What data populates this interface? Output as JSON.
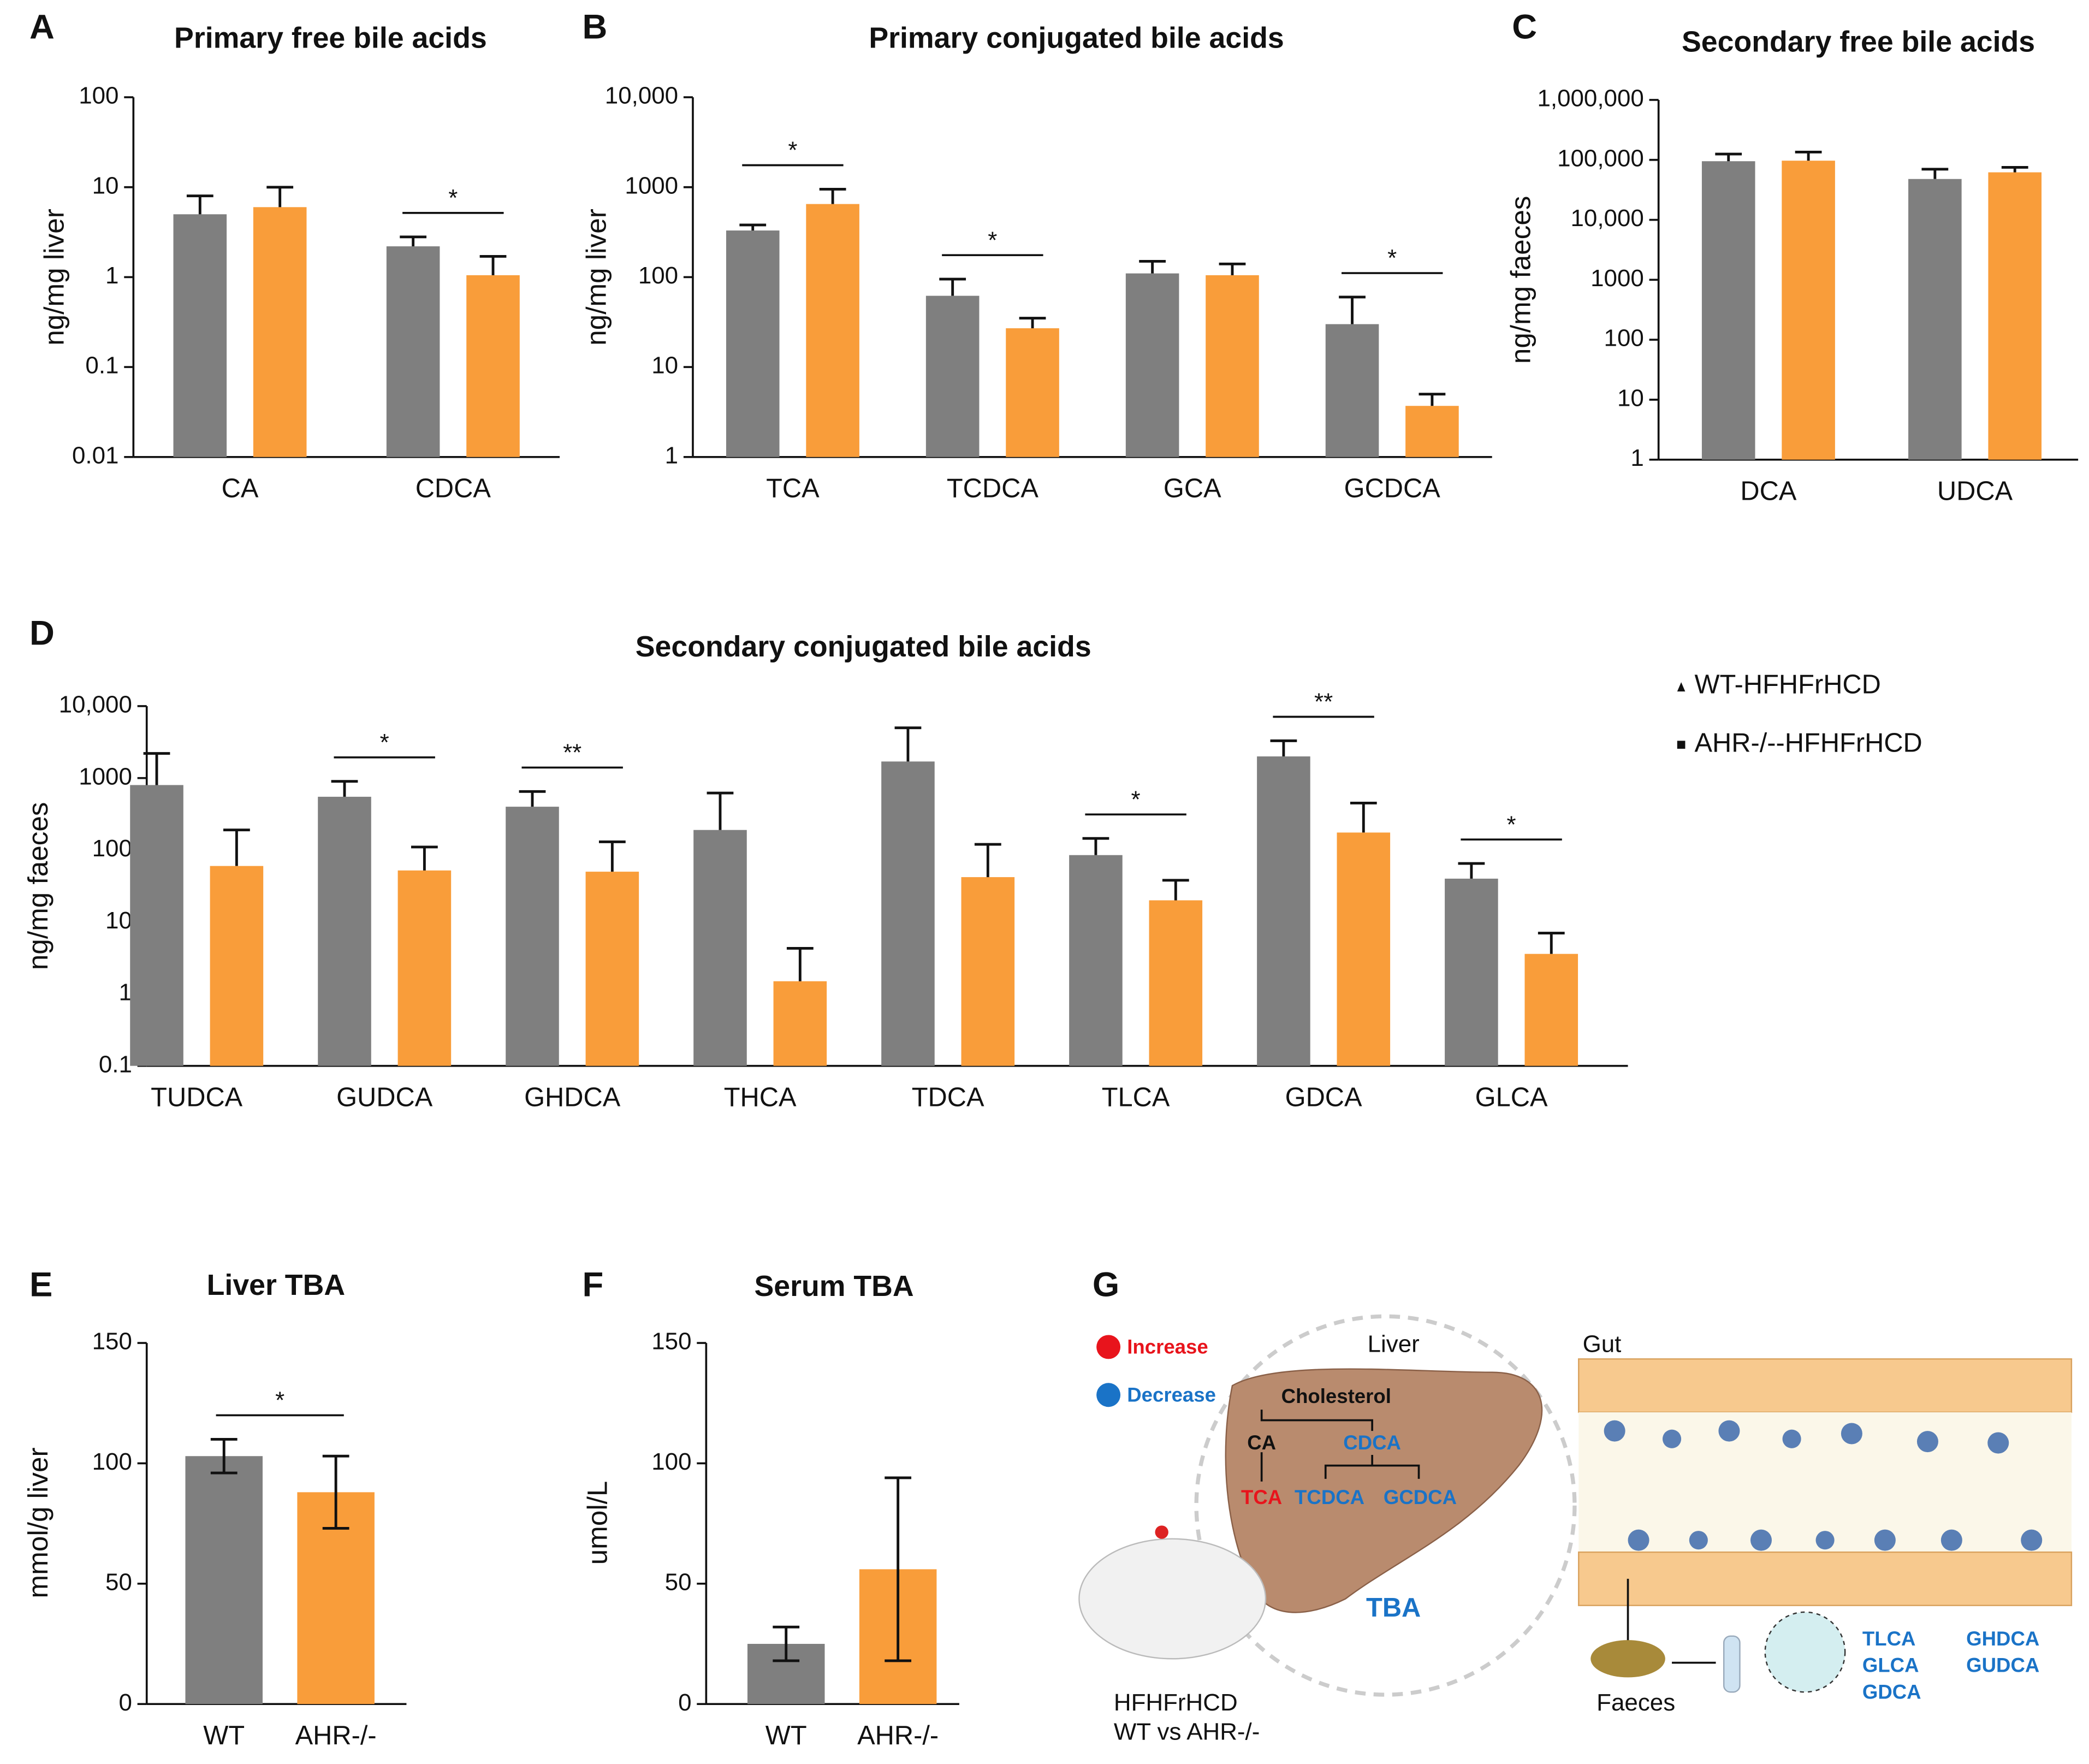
{
  "chart_data": [
    {
      "type": "bar",
      "panel": "A",
      "title": "Primary free bile acids",
      "y_label": "ng/mg liver",
      "log_scale": true,
      "categories": [
        "CA",
        "CDCA"
      ],
      "series": [
        {
          "color": "#7f7f7f",
          "values": [
            5,
            2.2
          ],
          "errors": [
            3,
            0.6
          ]
        },
        {
          "color": "#f99d3a",
          "values": [
            6,
            1.05
          ],
          "errors": [
            4,
            0.65
          ]
        }
      ],
      "significance": [
        null,
        "*"
      ],
      "ylim": [
        0.01,
        100
      ],
      "yticks": [
        0.01,
        0.1,
        1,
        10,
        100
      ]
    },
    {
      "type": "bar",
      "panel": "B",
      "title": "Primary conjugated bile acids",
      "y_label": "ng/mg liver",
      "log_scale": true,
      "categories": [
        "TCA",
        "TCDCA",
        "GCA",
        "GCDCA"
      ],
      "series": [
        {
          "color": "#7f7f7f",
          "values": [
            330,
            62,
            110,
            30
          ],
          "errors": [
            50,
            33,
            40,
            30
          ]
        },
        {
          "color": "#f99d3a",
          "values": [
            650,
            27,
            105,
            3.7
          ],
          "errors": [
            300,
            8,
            35,
            1.3
          ]
        }
      ],
      "significance": [
        "*",
        "*",
        null,
        "*"
      ],
      "ylim": [
        1,
        10000
      ],
      "yticks": [
        1,
        10,
        100,
        1000,
        {
          "value": 10000,
          "label": "10,000"
        }
      ]
    },
    {
      "type": "bar",
      "panel": "C",
      "title": "Secondary free bile acids",
      "y_label": "ng/mg faeces",
      "log_scale": true,
      "categories": [
        "DCA",
        "UDCA"
      ],
      "series": [
        {
          "color": "#7f7f7f",
          "values": [
            95000,
            48000
          ],
          "errors": [
            30000,
            22000
          ]
        },
        {
          "color": "#f99d3a",
          "values": [
            97000,
            62000
          ],
          "errors": [
            38000,
            13000
          ]
        }
      ],
      "significance": [
        null,
        null
      ],
      "ylim": [
        1,
        1000000
      ],
      "yticks": [
        1,
        10,
        100,
        1000,
        {
          "value": 10000,
          "label": "10,000"
        },
        {
          "value": 100000,
          "label": "100,000"
        },
        {
          "value": 1000000,
          "label": "1,000,000"
        }
      ]
    },
    {
      "type": "bar",
      "panel": "D",
      "title": "Secondary conjugated bile acids",
      "y_label": "ng/mg faeces",
      "log_scale": true,
      "categories": [
        "TUDCA",
        "GUDCA",
        "GHDCA",
        "THCA",
        "TDCA",
        "TLCA",
        "GDCA",
        "GLCA"
      ],
      "series": [
        {
          "name": "WT-HFHFrHCD",
          "color": "#7f7f7f",
          "values": [
            800,
            550,
            400,
            190,
            1700,
            85,
            2000,
            40
          ],
          "errors": [
            1400,
            350,
            250,
            430,
            3300,
            60,
            1300,
            25
          ]
        },
        {
          "name": "AHR-/--HFHFrHCD",
          "color": "#f99d3a",
          "values": [
            60,
            52,
            50,
            1.5,
            42,
            20,
            175,
            3.6
          ],
          "errors": [
            130,
            58,
            80,
            2.8,
            78,
            18,
            275,
            3.4
          ]
        }
      ],
      "significance": [
        null,
        "*",
        "**",
        null,
        null,
        "*",
        "**",
        "*"
      ],
      "ylim": [
        0.1,
        10000
      ],
      "yticks": [
        0.1,
        1,
        10,
        100,
        1000,
        {
          "value": 10000,
          "label": "10,000"
        }
      ]
    },
    {
      "type": "bar",
      "panel": "E",
      "title": "Liver TBA",
      "y_label": "mmol/g liver",
      "log_scale": false,
      "categories": [
        "WT",
        "AHR-/-"
      ],
      "series": [
        {
          "color": [
            "#7f7f7f",
            "#f99d3a"
          ],
          "values": [
            103,
            88
          ],
          "errors": [
            7,
            15
          ]
        }
      ],
      "significance": [
        "*"
      ],
      "ylim": [
        0,
        150
      ],
      "yticks": [
        0,
        50,
        100,
        150
      ]
    },
    {
      "type": "bar",
      "panel": "F",
      "title": "Serum TBA",
      "y_label": "umol/L",
      "log_scale": false,
      "categories": [
        "WT",
        "AHR-/-"
      ],
      "series": [
        {
          "color": [
            "#7f7f7f",
            "#f99d3a"
          ],
          "values": [
            25,
            56
          ],
          "errors": [
            7,
            38
          ]
        }
      ],
      "significance": [
        null
      ],
      "ylim": [
        0,
        150
      ],
      "yticks": [
        0,
        50,
        100,
        150
      ]
    }
  ],
  "diagram": {
    "panel": "G",
    "increase": "Increase",
    "decrease": "Decrease",
    "liver": "Liver",
    "cholesterol": "Cholesterol",
    "ca": "CA",
    "cdca": "CDCA",
    "tca": "TCA",
    "tcdca": "TCDCA",
    "gcdca": "GCDCA",
    "tba": "TBA",
    "gut": "Gut",
    "faeces": "Faeces",
    "acids": [
      "TLCA",
      "GLCA",
      "GDCA",
      "GHDCA",
      "GUDCA"
    ],
    "model": "HFHFrHCD",
    "comparison": "WT vs AHR-/-"
  }
}
